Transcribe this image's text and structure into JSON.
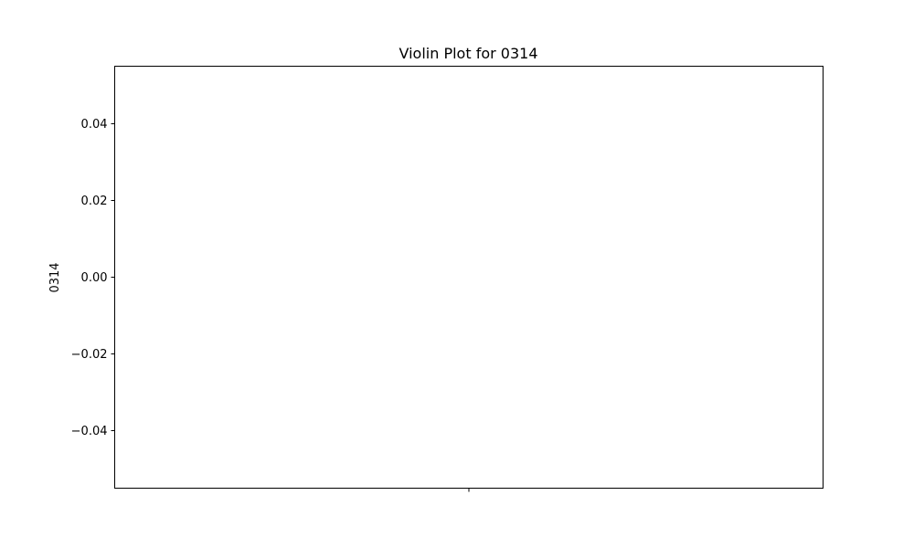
{
  "chart_data": {
    "type": "violin",
    "title": "Violin Plot for 0314",
    "xlabel": "",
    "ylabel": "0314",
    "categories": [
      ""
    ],
    "series": [],
    "ylim": [
      -0.055,
      0.055
    ],
    "y_ticks": [
      -0.04,
      -0.02,
      0.0,
      0.02,
      0.04
    ],
    "y_tick_labels": [
      "−0.04",
      "−0.02",
      "0.00",
      "0.02",
      "0.04"
    ],
    "x_ticks": [
      0
    ],
    "grid": false,
    "legend": "none",
    "colors": {
      "axis": "#000000",
      "background": "#ffffff"
    }
  }
}
